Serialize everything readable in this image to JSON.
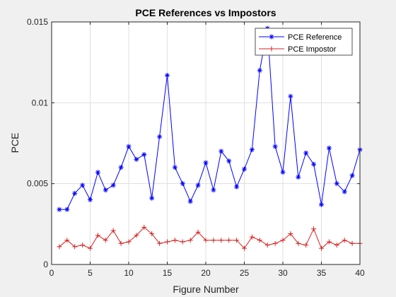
{
  "chart_data": {
    "type": "line",
    "title": "PCE References vs Impostors",
    "xlabel": "Figure Number",
    "ylabel": "PCE",
    "xlim": [
      0,
      40
    ],
    "ylim": [
      0,
      0.015
    ],
    "xticks": [
      0,
      5,
      10,
      15,
      20,
      25,
      30,
      35,
      40
    ],
    "xtick_labels": [
      "0",
      "5",
      "10",
      "15",
      "20",
      "25",
      "30",
      "35",
      "40"
    ],
    "yticks": [
      0,
      0.005,
      0.01,
      0.015
    ],
    "ytick_labels": [
      "0",
      "0.005",
      "0.01",
      "0.015"
    ],
    "grid": true,
    "legend_position": "top-right",
    "x": [
      1,
      2,
      3,
      4,
      5,
      6,
      7,
      8,
      9,
      10,
      11,
      12,
      13,
      14,
      15,
      16,
      17,
      18,
      19,
      20,
      21,
      22,
      23,
      24,
      25,
      26,
      27,
      28,
      29,
      30,
      31,
      32,
      33,
      34,
      35,
      36,
      37,
      38,
      39,
      40
    ],
    "series": [
      {
        "name": "PCE Reference",
        "color": "#0000ff",
        "marker": "asterisk",
        "values": [
          0.0034,
          0.0034,
          0.0044,
          0.0049,
          0.004,
          0.0057,
          0.0046,
          0.0049,
          0.006,
          0.0073,
          0.0065,
          0.0068,
          0.0041,
          0.0079,
          0.0117,
          0.006,
          0.005,
          0.0039,
          0.0049,
          0.0063,
          0.0046,
          0.007,
          0.0064,
          0.0048,
          0.0059,
          0.0071,
          0.012,
          0.0146,
          0.0073,
          0.0057,
          0.0104,
          0.0054,
          0.0069,
          0.0062,
          0.0037,
          0.0072,
          0.005,
          0.0045,
          0.0055,
          0.0071
        ]
      },
      {
        "name": "PCE Impostor",
        "color": "#d62020",
        "marker": "plus",
        "values": [
          0.0011,
          0.0015,
          0.0011,
          0.0012,
          0.001,
          0.0018,
          0.0015,
          0.0021,
          0.0013,
          0.0014,
          0.0018,
          0.0023,
          0.0019,
          0.0013,
          0.0014,
          0.0015,
          0.0014,
          0.0015,
          0.002,
          0.0015,
          0.0015,
          0.0015,
          0.0015,
          0.0015,
          0.001,
          0.0017,
          0.0015,
          0.0012,
          0.0013,
          0.0015,
          0.0019,
          0.0013,
          0.0012,
          0.0022,
          0.001,
          0.0014,
          0.0012,
          0.0015,
          0.0013,
          0.0013
        ]
      }
    ]
  }
}
